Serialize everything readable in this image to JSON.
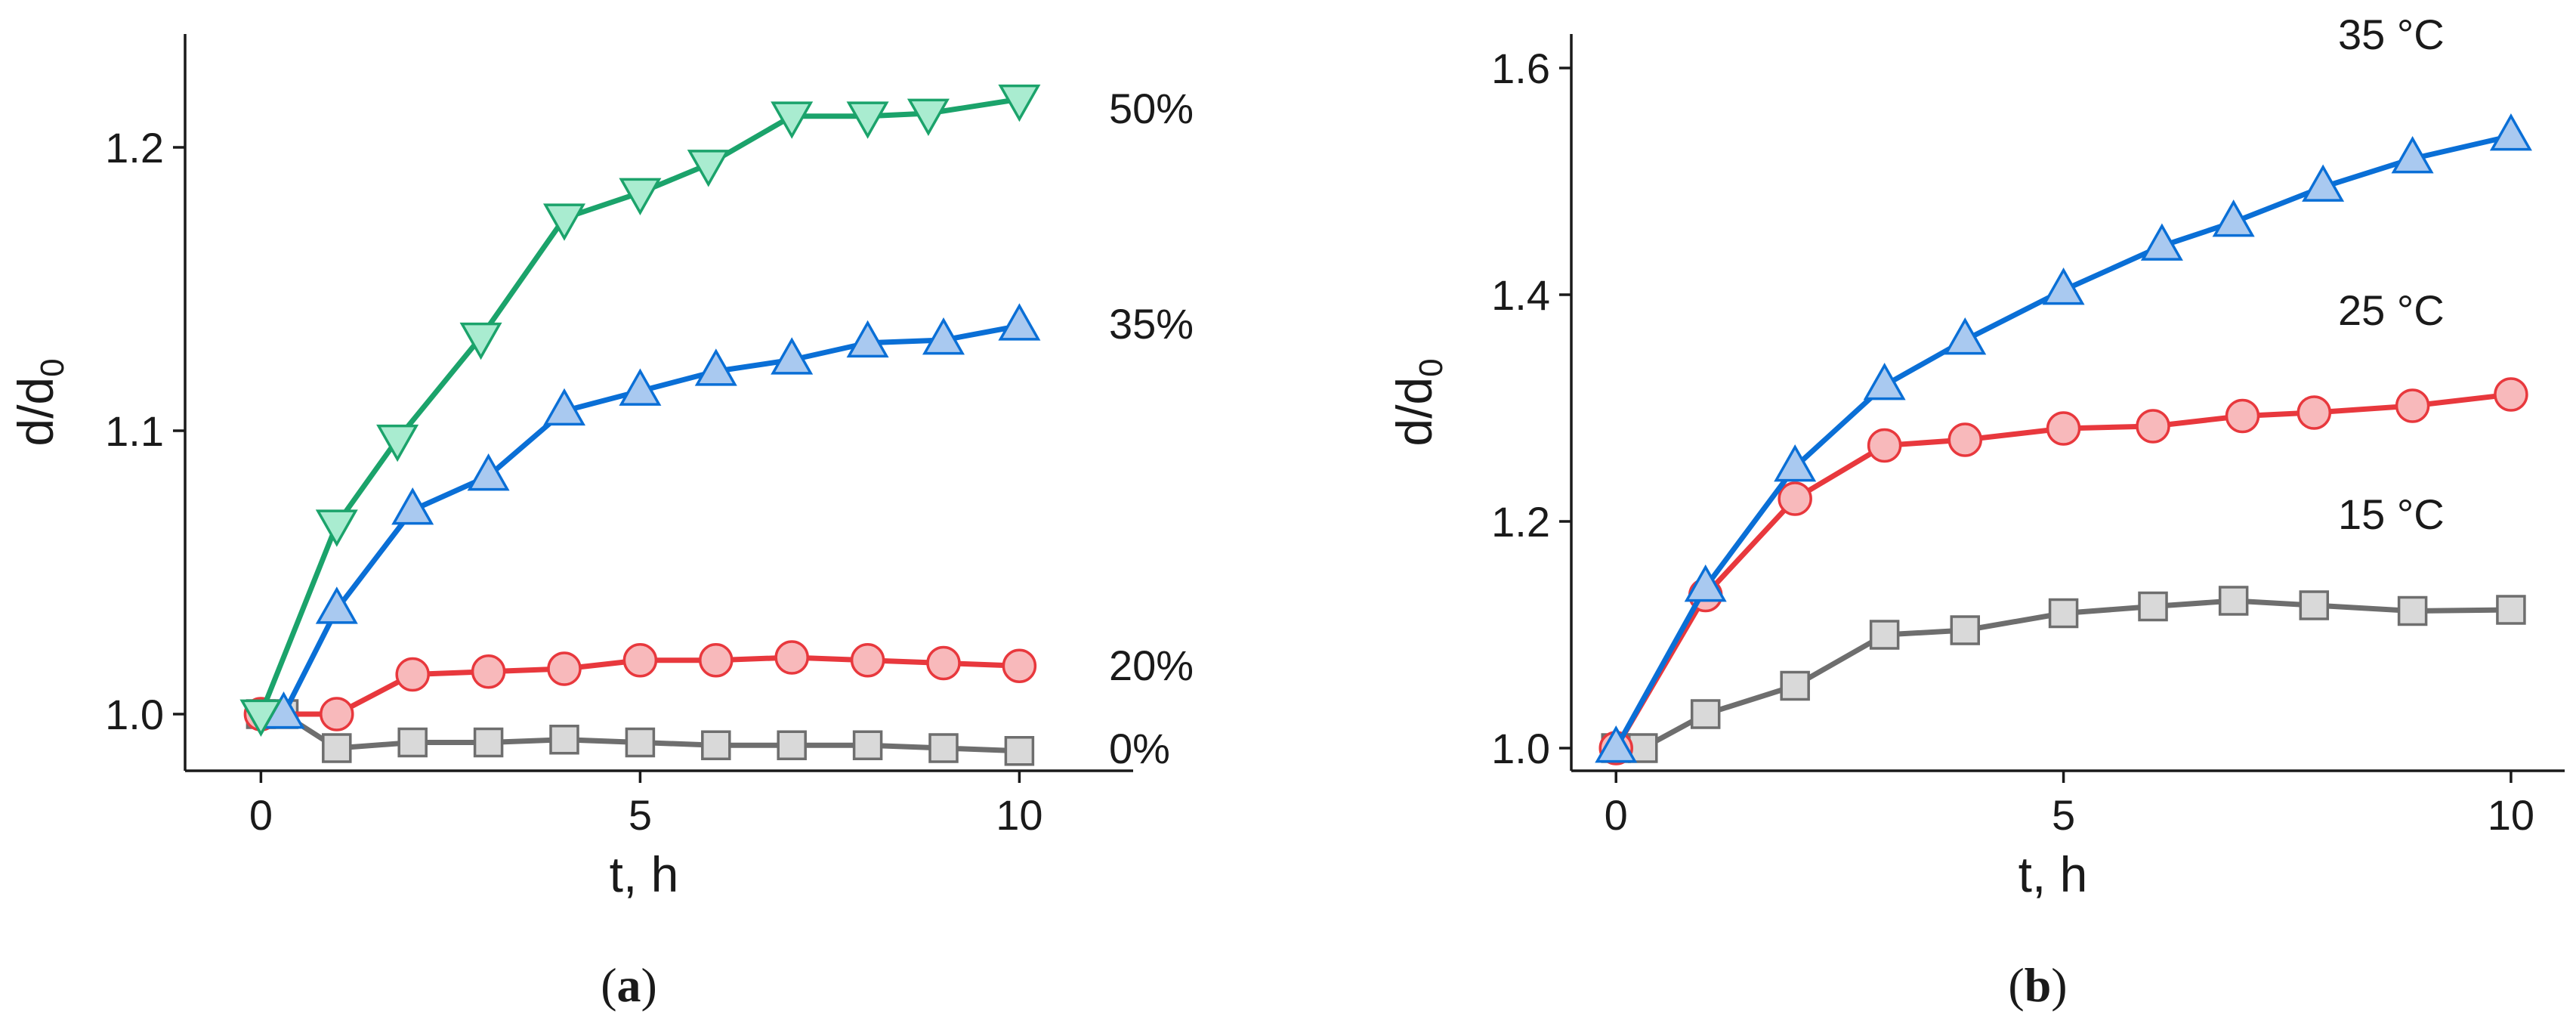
{
  "chart_data": [
    {
      "type": "line",
      "panel_label": "(a)",
      "xlabel": "t, h",
      "ylabel": "d/d",
      "ylabel_sub": "0",
      "xlim": [
        -1,
        11.5
      ],
      "ylim": [
        0.98,
        1.24
      ],
      "xticks": [
        0,
        5,
        10
      ],
      "xtick_labels": [
        "0",
        "5",
        "10"
      ],
      "yticks": [
        1.0,
        1.1,
        1.2
      ],
      "ytick_labels": [
        "1.0",
        "1.1",
        "1.2"
      ],
      "series": [
        {
          "label": "0%",
          "color": "#6e6e6e",
          "fill": "#d9d9d9",
          "marker": "square",
          "x": [
            0,
            0.3,
            1,
            2,
            3,
            4,
            5,
            6,
            7,
            8,
            9,
            10
          ],
          "y": [
            1.0,
            1.0,
            0.988,
            0.99,
            0.99,
            0.991,
            0.99,
            0.989,
            0.989,
            0.989,
            0.988,
            0.987
          ]
        },
        {
          "label": "20%",
          "color": "#e8383d",
          "fill": "#f8b9bb",
          "marker": "circle",
          "x": [
            0,
            1,
            2,
            3,
            4,
            5,
            6,
            7,
            8,
            9,
            10
          ],
          "y": [
            1.0,
            1.0,
            1.014,
            1.015,
            1.016,
            1.019,
            1.019,
            1.02,
            1.019,
            1.018,
            1.017
          ]
        },
        {
          "label": "35%",
          "color": "#0a6fd6",
          "fill": "#a9c9f0",
          "marker": "triangle-up",
          "x": [
            0.3,
            1,
            2,
            3,
            4,
            5,
            6,
            7,
            8,
            9,
            10
          ],
          "y": [
            1.0,
            1.037,
            1.072,
            1.084,
            1.107,
            1.114,
            1.121,
            1.125,
            1.131,
            1.132,
            1.137
          ]
        },
        {
          "label": "50%",
          "color": "#1ba36b",
          "fill": "#a9ecd0",
          "marker": "triangle-down",
          "x": [
            0,
            1,
            1.8,
            2.9,
            4,
            5,
            5.9,
            7,
            8,
            8.8,
            10
          ],
          "y": [
            1.0,
            1.067,
            1.097,
            1.133,
            1.175,
            1.184,
            1.194,
            1.211,
            1.211,
            1.212,
            1.217
          ]
        }
      ]
    },
    {
      "type": "line",
      "panel_label": "(b)",
      "xlabel": "t, h",
      "ylabel": "d/d",
      "ylabel_sub": "0",
      "xlim": [
        -0.5,
        10.6
      ],
      "ylim": [
        0.98,
        1.63
      ],
      "xticks": [
        0,
        5,
        10
      ],
      "xtick_labels": [
        "0",
        "5",
        "10"
      ],
      "yticks": [
        1.0,
        1.2,
        1.4,
        1.6
      ],
      "ytick_labels": [
        "1.0",
        "1.2",
        "1.4",
        "1.6"
      ],
      "series": [
        {
          "label": "15 °C",
          "color": "#6e6e6e",
          "fill": "#d9d9d9",
          "marker": "square",
          "x": [
            0,
            0.3,
            1,
            2,
            3,
            3.9,
            5,
            6,
            6.9,
            7.8,
            8.9,
            10
          ],
          "y": [
            1.0,
            1.0,
            1.03,
            1.055,
            1.1,
            1.104,
            1.119,
            1.125,
            1.13,
            1.126,
            1.121,
            1.122
          ]
        },
        {
          "label": "25 °C",
          "color": "#e8383d",
          "fill": "#f8b9bb",
          "marker": "circle",
          "x": [
            0,
            1,
            2,
            3,
            3.9,
            5,
            6,
            7,
            7.8,
            8.9,
            10
          ],
          "y": [
            1.0,
            1.135,
            1.22,
            1.267,
            1.272,
            1.282,
            1.284,
            1.293,
            1.296,
            1.302,
            1.312
          ]
        },
        {
          "label": "35 °C",
          "color": "#0a6fd6",
          "fill": "#a9c9f0",
          "marker": "triangle-up",
          "x": [
            0,
            1,
            2,
            3,
            3.9,
            5,
            6.1,
            6.9,
            7.9,
            8.9,
            10
          ],
          "y": [
            1.0,
            1.142,
            1.248,
            1.32,
            1.36,
            1.404,
            1.443,
            1.464,
            1.495,
            1.52,
            1.54
          ]
        }
      ]
    }
  ]
}
